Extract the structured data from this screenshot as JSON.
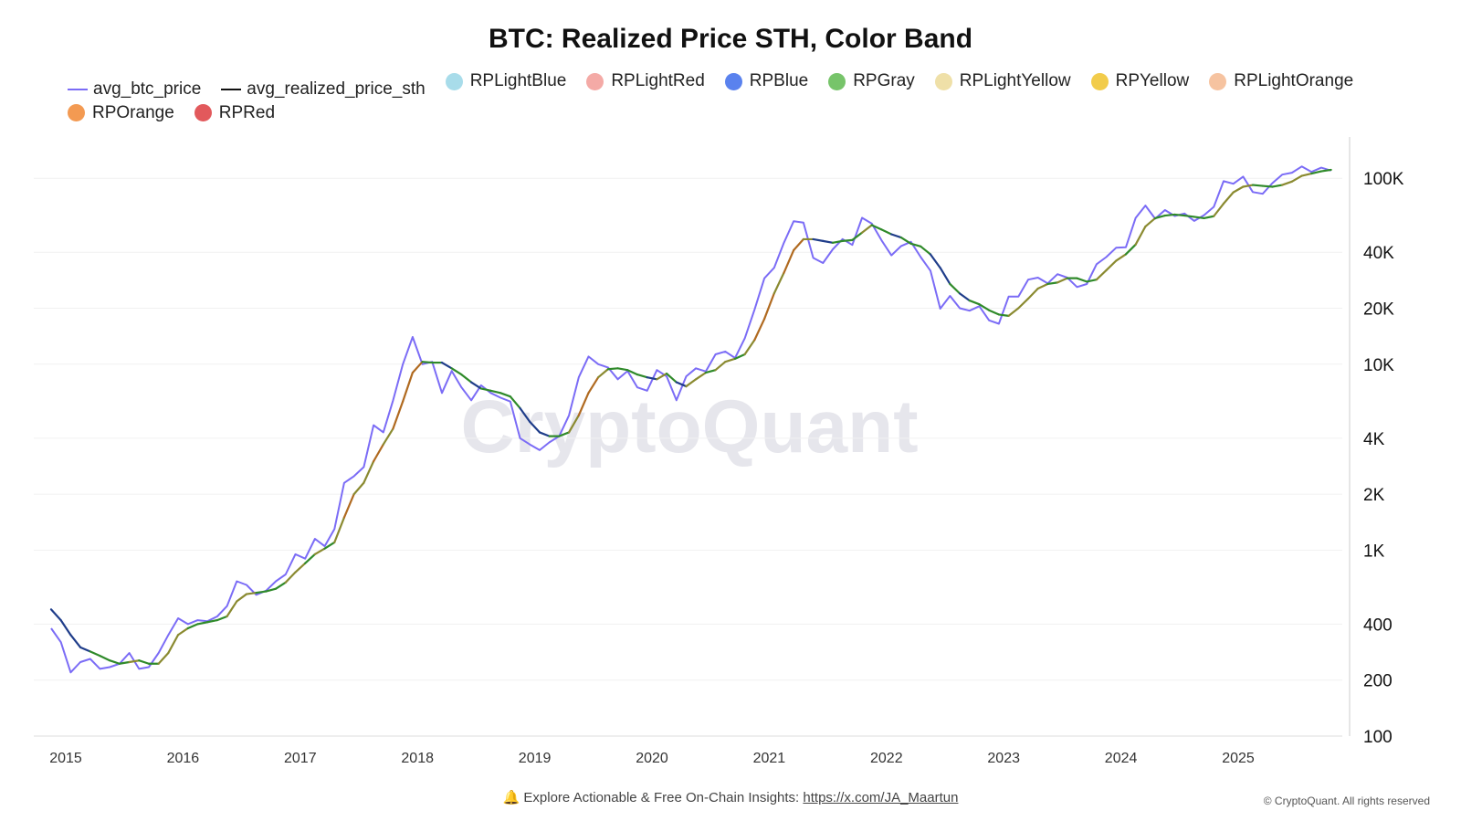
{
  "chart_data": {
    "type": "line",
    "title": "BTC: Realized Price STH, Color Band",
    "yscale": "log",
    "ylim": [
      100,
      150000
    ],
    "y_ticks": [
      {
        "v": 100,
        "label": "100"
      },
      {
        "v": 200,
        "label": "200"
      },
      {
        "v": 400,
        "label": "400"
      },
      {
        "v": 1000,
        "label": "1K"
      },
      {
        "v": 2000,
        "label": "2K"
      },
      {
        "v": 4000,
        "label": "4K"
      },
      {
        "v": 10000,
        "label": "10K"
      },
      {
        "v": 20000,
        "label": "20K"
      },
      {
        "v": 40000,
        "label": "40K"
      },
      {
        "v": 100000,
        "label": "100K"
      }
    ],
    "x_ticks": [
      "2015",
      "2016",
      "2017",
      "2018",
      "2019",
      "2020",
      "2021",
      "2022",
      "2023",
      "2024",
      "2025"
    ],
    "grid": true,
    "legend_position": "top",
    "legend": [
      {
        "name": "avg_btc_price",
        "kind": "line",
        "color": "#7b6cf6"
      },
      {
        "name": "avg_realized_price_sth",
        "kind": "line",
        "color": "#111111"
      },
      {
        "name": "RPLightBlue",
        "kind": "dot",
        "color": "#a8dcea"
      },
      {
        "name": "RPLightRed",
        "kind": "dot",
        "color": "#f4aaa6"
      },
      {
        "name": "RPBlue",
        "kind": "dot",
        "color": "#5a82ee"
      },
      {
        "name": "RPGray",
        "kind": "dot",
        "color": "#77c46a"
      },
      {
        "name": "RPLightYellow",
        "kind": "dot",
        "color": "#efe0a8"
      },
      {
        "name": "RPYellow",
        "kind": "dot",
        "color": "#f2cc4b"
      },
      {
        "name": "RPLightOrange",
        "kind": "dot",
        "color": "#f6c3a0"
      },
      {
        "name": "RPOrange",
        "kind": "dot",
        "color": "#f39a52"
      },
      {
        "name": "RPRed",
        "kind": "dot",
        "color": "#e2595c"
      }
    ],
    "x": [
      "2014-11",
      "2014-12",
      "2015-01",
      "2015-02",
      "2015-03",
      "2015-04",
      "2015-05",
      "2015-06",
      "2015-07",
      "2015-08",
      "2015-09",
      "2015-10",
      "2015-11",
      "2015-12",
      "2016-01",
      "2016-02",
      "2016-03",
      "2016-04",
      "2016-05",
      "2016-06",
      "2016-07",
      "2016-08",
      "2016-09",
      "2016-10",
      "2016-11",
      "2016-12",
      "2017-01",
      "2017-02",
      "2017-03",
      "2017-04",
      "2017-05",
      "2017-06",
      "2017-07",
      "2017-08",
      "2017-09",
      "2017-10",
      "2017-11",
      "2017-12",
      "2018-01",
      "2018-02",
      "2018-03",
      "2018-04",
      "2018-05",
      "2018-06",
      "2018-07",
      "2018-08",
      "2018-09",
      "2018-10",
      "2018-11",
      "2018-12",
      "2019-01",
      "2019-02",
      "2019-03",
      "2019-04",
      "2019-05",
      "2019-06",
      "2019-07",
      "2019-08",
      "2019-09",
      "2019-10",
      "2019-11",
      "2019-12",
      "2020-01",
      "2020-02",
      "2020-03",
      "2020-04",
      "2020-05",
      "2020-06",
      "2020-07",
      "2020-08",
      "2020-09",
      "2020-10",
      "2020-11",
      "2020-12",
      "2021-01",
      "2021-02",
      "2021-03",
      "2021-04",
      "2021-05",
      "2021-06",
      "2021-07",
      "2021-08",
      "2021-09",
      "2021-10",
      "2021-11",
      "2021-12",
      "2022-01",
      "2022-02",
      "2022-03",
      "2022-04",
      "2022-05",
      "2022-06",
      "2022-07",
      "2022-08",
      "2022-09",
      "2022-10",
      "2022-11",
      "2022-12",
      "2023-01",
      "2023-02",
      "2023-03",
      "2023-04",
      "2023-05",
      "2023-06",
      "2023-07",
      "2023-08",
      "2023-09",
      "2023-10",
      "2023-11",
      "2023-12",
      "2024-01",
      "2024-02",
      "2024-03",
      "2024-04",
      "2024-05",
      "2024-06",
      "2024-07",
      "2024-08",
      "2024-09",
      "2024-10",
      "2024-11",
      "2024-12",
      "2025-01",
      "2025-02",
      "2025-03",
      "2025-04",
      "2025-05",
      "2025-06",
      "2025-07",
      "2025-08",
      "2025-09",
      "2025-10"
    ],
    "series": [
      {
        "name": "avg_btc_price",
        "color": "#7b6cf6",
        "values": [
          380,
          320,
          220,
          250,
          260,
          230,
          235,
          245,
          280,
          230,
          235,
          280,
          350,
          430,
          400,
          420,
          415,
          440,
          500,
          680,
          650,
          575,
          605,
          680,
          740,
          950,
          900,
          1150,
          1050,
          1300,
          2300,
          2500,
          2800,
          4700,
          4300,
          6400,
          10000,
          14000,
          10000,
          10300,
          7000,
          9200,
          7500,
          6400,
          7700,
          7000,
          6600,
          6300,
          4000,
          3700,
          3450,
          3800,
          4100,
          5300,
          8500,
          11000,
          10000,
          9600,
          8300,
          9200,
          7500,
          7200,
          9300,
          8600,
          6400,
          8600,
          9500,
          9150,
          11300,
          11700,
          10800,
          13800,
          19700,
          29000,
          33000,
          45000,
          58800,
          57700,
          37300,
          35000,
          41500,
          47100,
          43800,
          61300,
          57000,
          46300,
          38500,
          43200,
          45500,
          37700,
          31800,
          19900,
          23300,
          20000,
          19400,
          20500,
          17200,
          16500,
          23100,
          23100,
          28500,
          29200,
          27200,
          30500,
          29200,
          26000,
          27000,
          34500,
          37700,
          42300,
          42600,
          61200,
          71300,
          60600,
          67500,
          62700,
          64600,
          59000,
          63300,
          70200,
          96400,
          93400,
          102000,
          84300,
          82500,
          94200,
          104600,
          107100,
          115700,
          108200,
          114000,
          110000
        ]
      },
      {
        "name": "avg_realized_price_sth",
        "color": "#111111",
        "values": [
          480,
          420,
          350,
          300,
          285,
          270,
          255,
          245,
          250,
          255,
          245,
          245,
          280,
          350,
          380,
          400,
          410,
          420,
          440,
          530,
          580,
          590,
          600,
          620,
          670,
          760,
          850,
          950,
          1020,
          1100,
          1500,
          2000,
          2300,
          3000,
          3700,
          4500,
          6300,
          9000,
          10300,
          10200,
          10200,
          9500,
          8800,
          8000,
          7400,
          7200,
          7000,
          6700,
          5800,
          4900,
          4300,
          4100,
          4100,
          4300,
          5300,
          7000,
          8500,
          9400,
          9500,
          9300,
          8800,
          8500,
          8300,
          8900,
          8000,
          7600,
          8300,
          9000,
          9300,
          10300,
          10700,
          11300,
          13500,
          17500,
          24000,
          31000,
          41000,
          47000,
          47000,
          46000,
          45000,
          46000,
          46500,
          51000,
          56000,
          53000,
          50000,
          48000,
          44500,
          43000,
          39000,
          33000,
          27000,
          24000,
          22000,
          21000,
          19500,
          18500,
          18200,
          20000,
          22500,
          25500,
          27000,
          27500,
          29000,
          29000,
          27800,
          28500,
          32000,
          36000,
          39000,
          44000,
          55000,
          61000,
          63000,
          63800,
          63000,
          62000,
          61000,
          62500,
          73000,
          84000,
          90000,
          92000,
          91000,
          90000,
          92000,
          96000,
          103000,
          106000,
          109000,
          111000
        ]
      }
    ]
  },
  "watermark": "CryptoQuant",
  "footer": {
    "icon": "bell-icon",
    "text": "Explore Actionable & Free On-Chain Insights: ",
    "link": "https://x.com/JA_Maartun"
  },
  "copyright": "© CryptoQuant. All rights reserved"
}
